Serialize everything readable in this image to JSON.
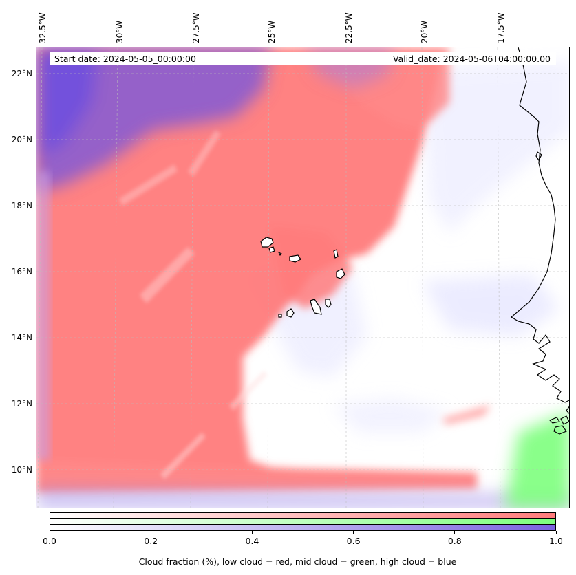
{
  "header": {
    "start_date": "Start date: 2024-05-05_00:00:00",
    "valid_date": "Valid_date: 2024-05-06T04:00:00.00"
  },
  "map": {
    "longitude_labels": [
      "32.5°W",
      "30°W",
      "27.5°W",
      "25°W",
      "22.5°W",
      "20°W",
      "17.5°W"
    ],
    "latitude_labels": [
      "22°N",
      "20°N",
      "18°N",
      "16°N",
      "14°N",
      "12°N",
      "10°N"
    ],
    "layer_colors": {
      "low_cloud": "#ff7b7b",
      "mid_cloud": "#7dff7d",
      "high_cloud": "#7b62e0",
      "clear": "#ffffff",
      "coastline": "#000000"
    }
  },
  "colorbar": {
    "ticks": [
      "0.0",
      "0.2",
      "0.4",
      "0.6",
      "0.8",
      "1.0"
    ],
    "label": "Cloud fraction (%), low cloud = red, mid cloud = green, high cloud = blue",
    "rows": [
      {
        "name": "low cloud",
        "color": "#ff7b7b"
      },
      {
        "name": "mid cloud",
        "color": "#7dff7d"
      },
      {
        "name": "high cloud",
        "color": "#7b62e0"
      }
    ]
  }
}
